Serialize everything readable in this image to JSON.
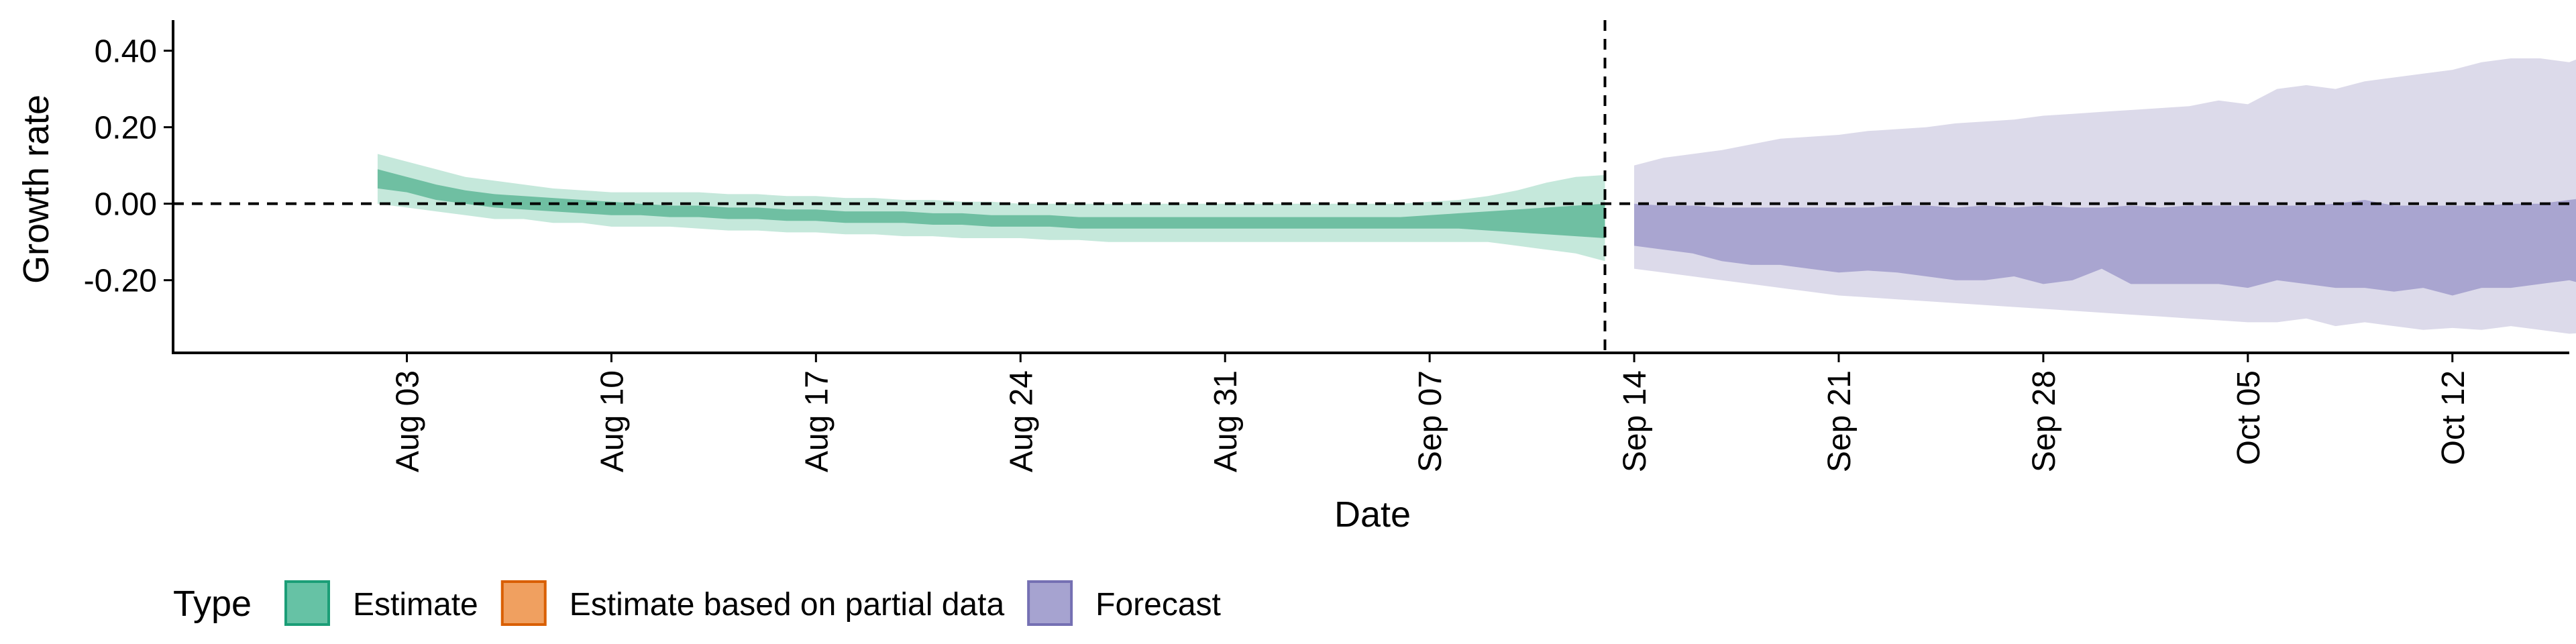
{
  "chart_data": {
    "type": "area",
    "xlabel": "Date",
    "ylabel": "Growth rate",
    "ylim": [
      -0.39,
      0.48
    ],
    "yticks": [
      -0.2,
      0.0,
      0.2,
      0.4
    ],
    "ytick_labels": [
      "-0.20",
      "0.00",
      "0.20",
      "0.40"
    ],
    "xlim": [
      "2021-07-26",
      "2021-10-16"
    ],
    "xticks": [
      "2021-08-03",
      "2021-08-10",
      "2021-08-17",
      "2021-08-24",
      "2021-08-31",
      "2021-09-07",
      "2021-09-14",
      "2021-09-21",
      "2021-09-28",
      "2021-10-05",
      "2021-10-12"
    ],
    "xtick_labels": [
      "Aug 03",
      "Aug 10",
      "Aug 17",
      "Aug 24",
      "Aug 31",
      "Sep 07",
      "Sep 14",
      "Sep 21",
      "Sep 28",
      "Oct 05",
      "Oct 12"
    ],
    "hline": 0.0,
    "vline_date": "2021-09-13",
    "grid": false,
    "legend": {
      "title": "Type",
      "position": "bottom-left",
      "entries": [
        {
          "label": "Estimate",
          "fill": "#66c2a5",
          "stroke": "#1b9e77"
        },
        {
          "label": "Estimate based on partial data",
          "fill": "#f0a060",
          "stroke": "#d95f02"
        },
        {
          "label": "Forecast",
          "fill": "#a6a3d0",
          "stroke": "#7570b3"
        }
      ]
    },
    "series": [
      {
        "name": "Estimate",
        "color": "#1b9e77",
        "start_date": "2021-08-02",
        "outer_lower": [
          0.0,
          -0.01,
          -0.02,
          -0.03,
          -0.04,
          -0.04,
          -0.05,
          -0.05,
          -0.06,
          -0.06,
          -0.06,
          -0.065,
          -0.07,
          -0.07,
          -0.075,
          -0.075,
          -0.08,
          -0.08,
          -0.085,
          -0.085,
          -0.09,
          -0.09,
          -0.09,
          -0.095,
          -0.095,
          -0.1,
          -0.1,
          -0.1,
          -0.1,
          -0.1,
          -0.1,
          -0.1,
          -0.1,
          -0.1,
          -0.1,
          -0.1,
          -0.1,
          -0.1,
          -0.1,
          -0.11,
          -0.12,
          -0.13,
          -0.15
        ],
        "outer_upper": [
          0.13,
          0.11,
          0.09,
          0.07,
          0.06,
          0.05,
          0.04,
          0.035,
          0.03,
          0.03,
          0.03,
          0.03,
          0.025,
          0.025,
          0.02,
          0.02,
          0.015,
          0.015,
          0.01,
          0.01,
          0.005,
          0.005,
          0.0,
          0.0,
          0.0,
          0.0,
          0.0,
          0.0,
          0.0,
          0.0,
          0.0,
          0.0,
          0.0,
          0.0,
          0.0,
          0.0,
          0.005,
          0.01,
          0.02,
          0.035,
          0.055,
          0.07,
          0.075
        ],
        "inner_lower": [
          0.04,
          0.03,
          0.01,
          0.0,
          -0.01,
          -0.015,
          -0.02,
          -0.025,
          -0.03,
          -0.03,
          -0.035,
          -0.035,
          -0.04,
          -0.04,
          -0.045,
          -0.045,
          -0.05,
          -0.05,
          -0.05,
          -0.055,
          -0.055,
          -0.06,
          -0.06,
          -0.06,
          -0.065,
          -0.065,
          -0.065,
          -0.065,
          -0.065,
          -0.065,
          -0.065,
          -0.065,
          -0.065,
          -0.065,
          -0.065,
          -0.065,
          -0.065,
          -0.065,
          -0.07,
          -0.075,
          -0.08,
          -0.085,
          -0.09
        ],
        "inner_upper": [
          0.09,
          0.07,
          0.05,
          0.035,
          0.025,
          0.02,
          0.015,
          0.01,
          0.005,
          0.0,
          -0.005,
          -0.005,
          -0.01,
          -0.01,
          -0.015,
          -0.015,
          -0.02,
          -0.02,
          -0.02,
          -0.025,
          -0.025,
          -0.03,
          -0.03,
          -0.03,
          -0.035,
          -0.035,
          -0.035,
          -0.035,
          -0.035,
          -0.035,
          -0.035,
          -0.035,
          -0.035,
          -0.035,
          -0.035,
          -0.035,
          -0.03,
          -0.025,
          -0.02,
          -0.015,
          -0.01,
          -0.005,
          0.0
        ]
      },
      {
        "name": "Forecast",
        "color": "#7570b3",
        "start_date": "2021-09-14",
        "outer_lower": [
          -0.17,
          -0.18,
          -0.19,
          -0.2,
          -0.21,
          -0.22,
          -0.23,
          -0.24,
          -0.245,
          -0.25,
          -0.255,
          -0.26,
          -0.265,
          -0.27,
          -0.275,
          -0.28,
          -0.285,
          -0.29,
          -0.295,
          -0.3,
          -0.305,
          -0.31,
          -0.31,
          -0.3,
          -0.32,
          -0.31,
          -0.32,
          -0.33,
          -0.325,
          -0.33,
          -0.32,
          -0.33,
          -0.34,
          -0.335,
          -0.34,
          -0.34,
          -0.35
        ],
        "outer_upper": [
          0.1,
          0.12,
          0.13,
          0.14,
          0.155,
          0.17,
          0.175,
          0.18,
          0.19,
          0.195,
          0.2,
          0.21,
          0.215,
          0.22,
          0.23,
          0.235,
          0.24,
          0.245,
          0.25,
          0.255,
          0.27,
          0.26,
          0.3,
          0.31,
          0.3,
          0.32,
          0.33,
          0.34,
          0.35,
          0.37,
          0.38,
          0.38,
          0.37,
          0.4,
          0.43,
          0.44,
          0.44
        ],
        "inner_lower": [
          -0.11,
          -0.12,
          -0.13,
          -0.15,
          -0.16,
          -0.16,
          -0.17,
          -0.18,
          -0.175,
          -0.18,
          -0.19,
          -0.2,
          -0.2,
          -0.19,
          -0.21,
          -0.2,
          -0.17,
          -0.21,
          -0.21,
          -0.21,
          -0.21,
          -0.22,
          -0.2,
          -0.21,
          -0.22,
          -0.22,
          -0.23,
          -0.22,
          -0.24,
          -0.22,
          -0.22,
          -0.21,
          -0.2,
          -0.22,
          -0.22,
          -0.22,
          -0.22
        ],
        "inner_upper": [
          0.0,
          -0.005,
          -0.005,
          -0.01,
          -0.01,
          -0.01,
          -0.01,
          -0.01,
          -0.01,
          -0.005,
          -0.005,
          -0.01,
          -0.005,
          -0.01,
          -0.005,
          -0.01,
          -0.01,
          -0.005,
          -0.01,
          -0.005,
          -0.005,
          -0.005,
          -0.005,
          -0.005,
          0.0,
          0.01,
          -0.005,
          -0.005,
          -0.005,
          -0.005,
          0.0,
          0.0,
          0.01,
          0.02,
          0.025,
          0.025,
          0.025
        ]
      }
    ]
  }
}
